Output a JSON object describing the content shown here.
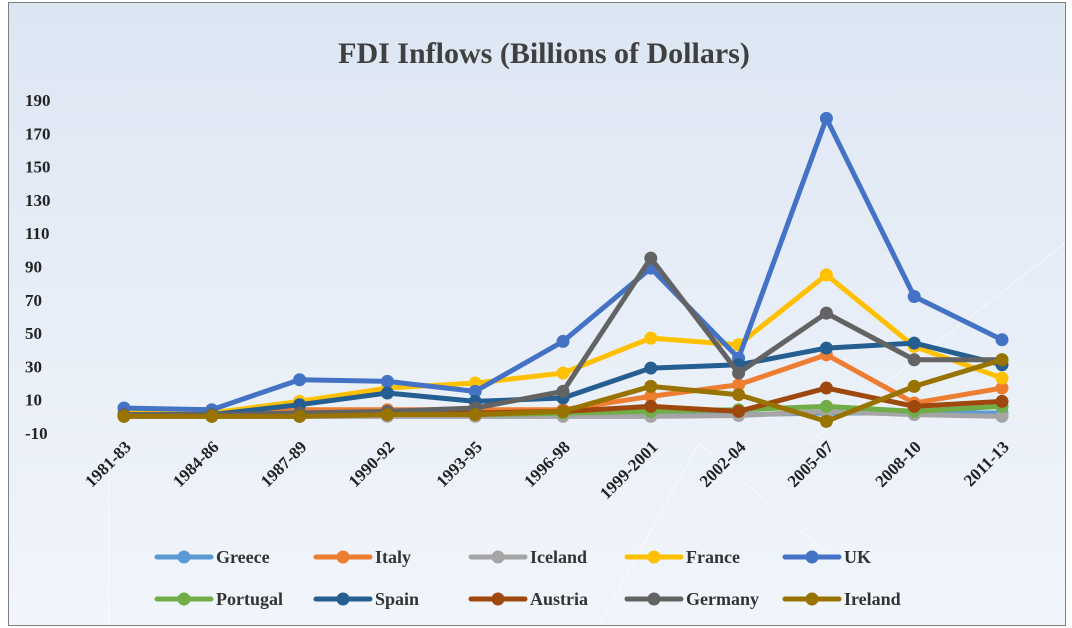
{
  "chart_data": {
    "type": "line",
    "title": "FDI Inflows (Billions of Dollars)",
    "xlabel": "",
    "ylabel": "",
    "ylim": [
      -10,
      190
    ],
    "yticks": [
      -10,
      10,
      30,
      50,
      70,
      90,
      110,
      130,
      150,
      170,
      190
    ],
    "grid": false,
    "legend_position": "bottom",
    "categories": [
      "1981-83",
      "1984-86",
      "1987-89",
      "1990-92",
      "1993-95",
      "1996-98",
      "1999-2001",
      "2002-04",
      "2005-07",
      "2008-10",
      "2011-13"
    ],
    "series": [
      {
        "name": "Greece",
        "color": "#5b9bd5",
        "values": [
          0.5,
          0.5,
          1,
          1,
          1,
          1,
          1,
          1,
          2,
          2,
          2
        ]
      },
      {
        "name": "Italy",
        "color": "#ed7d31",
        "values": [
          1,
          1,
          4,
          4,
          4,
          4,
          12,
          19,
          37,
          8,
          17
        ]
      },
      {
        "name": "Iceland",
        "color": "#a5a5a5",
        "values": [
          0,
          0,
          0,
          0,
          0,
          0,
          0,
          0.5,
          3,
          1,
          0
        ]
      },
      {
        "name": "France",
        "color": "#ffc000",
        "values": [
          2,
          2,
          9,
          17,
          20,
          26,
          47,
          43,
          85,
          42,
          23
        ]
      },
      {
        "name": "UK",
        "color": "#4472c4",
        "values": [
          5,
          4,
          22,
          21,
          15,
          45,
          89,
          35,
          179,
          72,
          46
        ]
      },
      {
        "name": "Portugal",
        "color": "#70ad47",
        "values": [
          0.5,
          0.5,
          1,
          2,
          1,
          2,
          3,
          4,
          6,
          3,
          6
        ]
      },
      {
        "name": "Spain",
        "color": "#255e91",
        "values": [
          1,
          1,
          7,
          14,
          9,
          11,
          29,
          31,
          41,
          44,
          31
        ]
      },
      {
        "name": "Austria",
        "color": "#9e480e",
        "values": [
          0.5,
          0.5,
          1,
          1,
          2,
          3,
          6,
          3,
          17,
          6,
          9
        ]
      },
      {
        "name": "Germany",
        "color": "#636363",
        "values": [
          1,
          1,
          2,
          3,
          5,
          15,
          95,
          26,
          62,
          34,
          34
        ]
      },
      {
        "name": "Ireland",
        "color": "#997300",
        "values": [
          0,
          0,
          0,
          1,
          1,
          3,
          18,
          13,
          -3,
          18,
          34
        ]
      }
    ]
  }
}
